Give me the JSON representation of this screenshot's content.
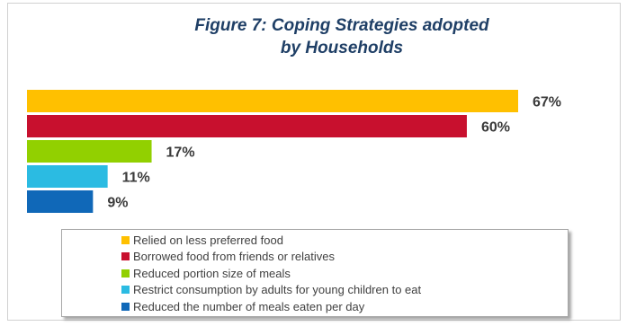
{
  "chart_data": {
    "type": "bar",
    "orientation": "horizontal",
    "title_lines": [
      "Figure 7: Coping Strategies adopted",
      "by Households"
    ],
    "categories": [
      "Relied on less preferred food",
      "Borrowed food from friends or relatives",
      "Reduced portion size of meals",
      "Restrict consumption by adults for young children to eat",
      "Reduced the number of meals eaten per day"
    ],
    "values": [
      67,
      60,
      17,
      11,
      9
    ],
    "value_labels": [
      "67%",
      "60%",
      "17%",
      "11%",
      "9%"
    ],
    "colors": [
      "#ffc000",
      "#c8102e",
      "#92d000",
      "#2bbbe2",
      "#1068b8"
    ],
    "unit": "%",
    "xlim": [
      0,
      100
    ],
    "grid": false,
    "legend_position": "bottom"
  }
}
